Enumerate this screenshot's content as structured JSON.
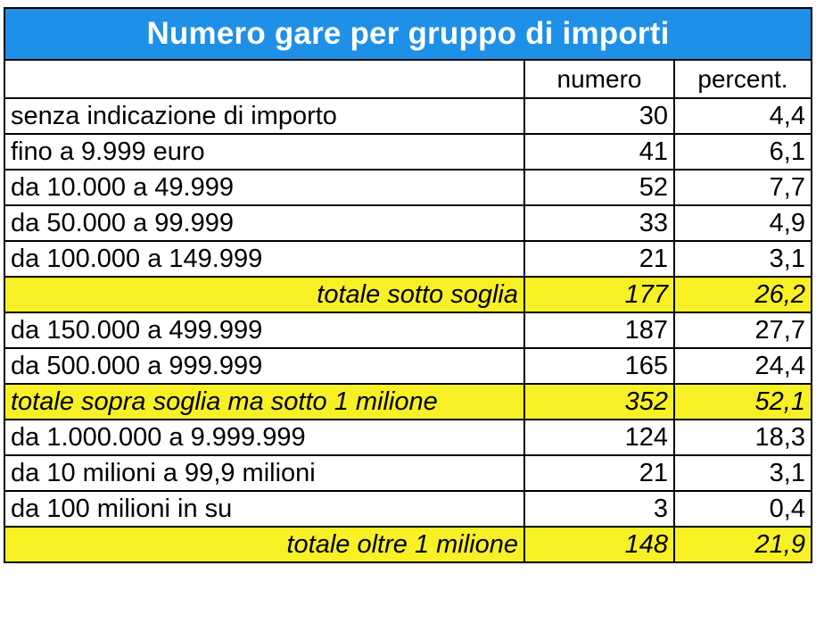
{
  "table": {
    "title": "Numero gare per gruppo di importi",
    "headers": {
      "label": "",
      "numero": "numero",
      "percent": "percent."
    },
    "rows": [
      {
        "label": "senza indicazione di importo",
        "numero": "30",
        "percent": "4,4",
        "total": false
      },
      {
        "label": "fino a 9.999 euro",
        "numero": "41",
        "percent": "6,1",
        "total": false
      },
      {
        "label": "da 10.000 a 49.999",
        "numero": "52",
        "percent": "7,7",
        "total": false
      },
      {
        "label": "da 50.000 a 99.999",
        "numero": "33",
        "percent": "4,9",
        "total": false
      },
      {
        "label": "da 100.000 a 149.999",
        "numero": "21",
        "percent": "3,1",
        "total": false
      },
      {
        "label": "totale sotto soglia",
        "numero": "177",
        "percent": "26,2",
        "total": true,
        "align": "right"
      },
      {
        "label": "da 150.000 a 499.999",
        "numero": "187",
        "percent": "27,7",
        "total": false
      },
      {
        "label": "da 500.000 a 999.999",
        "numero": "165",
        "percent": "24,4",
        "total": false
      },
      {
        "label": "totale sopra soglia ma sotto 1 milione",
        "numero": "352",
        "percent": "52,1",
        "total": true,
        "align": "left"
      },
      {
        "label": "da 1.000.000 a 9.999.999",
        "numero": "124",
        "percent": "18,3",
        "total": false
      },
      {
        "label": "da 10 milioni a 99,9 milioni",
        "numero": "21",
        "percent": "3,1",
        "total": false
      },
      {
        "label": "da 100 milioni in su",
        "numero": "3",
        "percent": "0,4",
        "total": false
      },
      {
        "label": "totale oltre 1 milione",
        "numero": "148",
        "percent": "21,9",
        "total": true,
        "align": "right"
      }
    ]
  },
  "colors": {
    "title_bg": "#1e90e8",
    "title_text": "#ffffff",
    "total_bg": "#f7f025"
  }
}
